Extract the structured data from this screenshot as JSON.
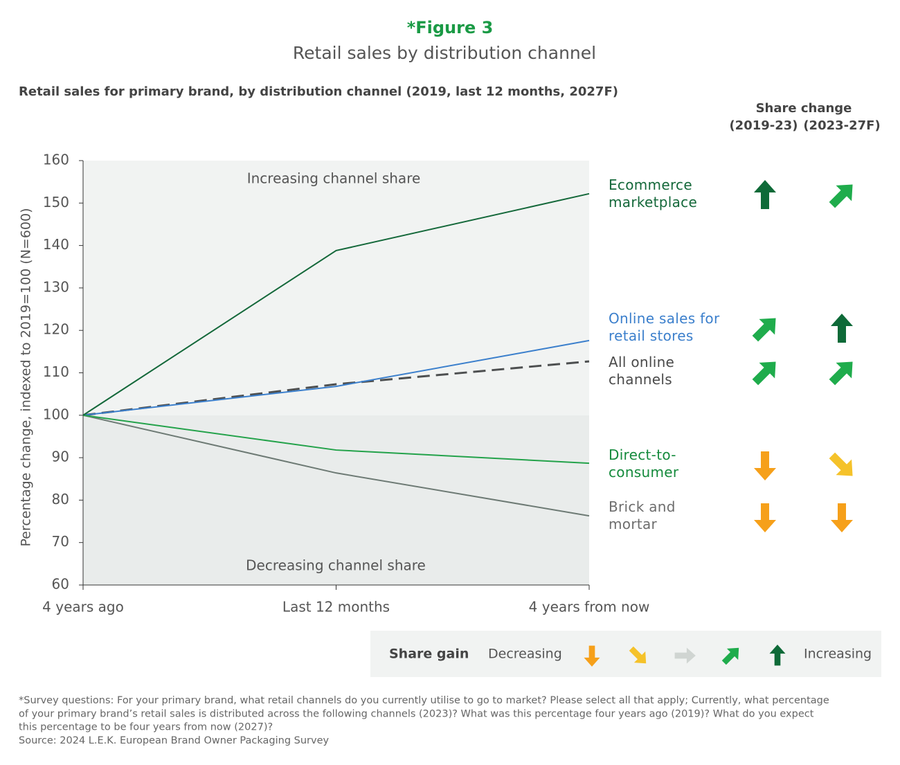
{
  "chart_data": {
    "type": "line",
    "title": "*Figure 3",
    "subtitle": "Retail sales by distribution channel",
    "chart_heading": "Retail sales for primary brand, by distribution channel (2019, last 12 months, 2027F)",
    "y_label": "Percentage change, indexed to 2019=100 (N=600)",
    "annotations": [
      "Increasing channel share",
      "Decreasing channel share"
    ],
    "categories": [
      "4 years ago",
      "Last 12 months",
      "4 years from now"
    ],
    "ylim": [
      60,
      160
    ],
    "yticks": [
      60,
      70,
      80,
      90,
      100,
      110,
      120,
      130,
      140,
      150,
      160
    ],
    "share_change_title": "Share change",
    "share_change_columns": [
      "(2019-23)",
      "(2023-27F)"
    ],
    "series": [
      {
        "name": "Ecommerce marketplace",
        "color": "#14683a",
        "values": [
          100,
          138.8,
          152.2
        ],
        "share_change": [
          "up",
          "up-right"
        ]
      },
      {
        "name": "Online sales for retail stores",
        "color": "#3b7fcc",
        "values": [
          100,
          106.8,
          117.6
        ],
        "share_change": [
          "up-right",
          "up"
        ]
      },
      {
        "name": "All online channels",
        "color": "#4d4f50",
        "dash": true,
        "label_color": "#4a4a4a",
        "values": [
          100,
          107.3,
          112.7
        ],
        "share_change": [
          "up-right",
          "up-right"
        ]
      },
      {
        "name": "Direct-to-consumer",
        "color": "#23a24a",
        "label_color": "#148a3c",
        "values": [
          100,
          91.8,
          88.7
        ],
        "share_change": [
          "down",
          "down-right"
        ]
      },
      {
        "name": "Brick and mortar",
        "color": "#6d7a74",
        "label_color": "#6d6d6d",
        "values": [
          100,
          86.4,
          76.3
        ],
        "share_change": [
          "down",
          "down"
        ]
      }
    ],
    "legend": {
      "title": "Share gain",
      "low": "Decreasing",
      "high": "Increasing",
      "scale": [
        {
          "dir": "down",
          "color": "#f6a01a"
        },
        {
          "dir": "down-right",
          "color": "#f5c22a"
        },
        {
          "dir": "right",
          "color": "#d0d5d2"
        },
        {
          "dir": "up-right",
          "color": "#1fac4c"
        },
        {
          "dir": "up",
          "color": "#0e6a38"
        }
      ]
    },
    "footnote": [
      "*Survey questions: For your primary brand, what retail channels do you currently utilise to go to market? Please select all that apply; Currently, what percentage",
      "of your primary brand’s retail sales is distributed across the following channels (2023)? What was this percentage four years ago (2019)? What do you expect",
      "this percentage to be four years from now (2027)?",
      "Source: 2024 L.E.K. European Brand Owner Packaging Survey"
    ]
  }
}
